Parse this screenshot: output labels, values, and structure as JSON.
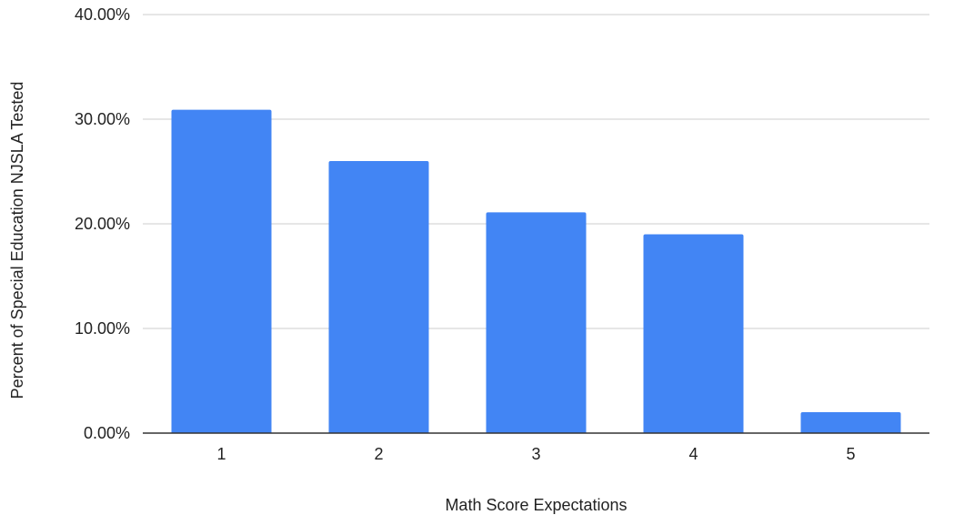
{
  "chart_data": {
    "type": "bar",
    "categories": [
      "1",
      "2",
      "3",
      "4",
      "5"
    ],
    "values": [
      30.9,
      26.0,
      21.1,
      19.0,
      2.0
    ],
    "series": [
      {
        "values": [
          30.9,
          26.0,
          21.1,
          19.0,
          2.0
        ],
        "color": "#4285F4"
      }
    ],
    "xlabel": "Math Score Expectations",
    "ylabel": "Percent of Special Education NJSLA Tested",
    "ylim": [
      0,
      40
    ],
    "yticks": [
      "0.00%",
      "10.00%",
      "20.00%",
      "30.00%",
      "40.00%"
    ],
    "grid": true,
    "legend": "none"
  }
}
